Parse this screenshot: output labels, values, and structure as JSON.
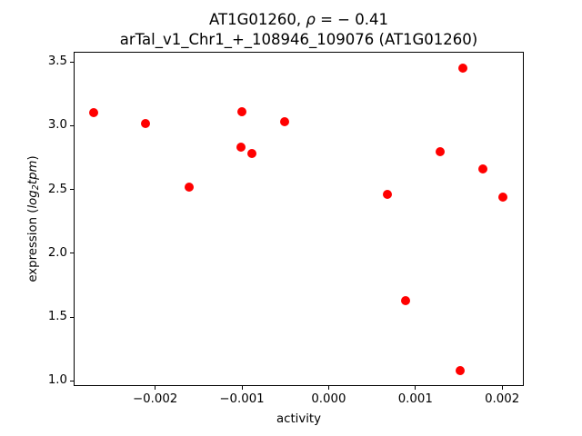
{
  "header": {
    "title_pre": "AT1G01260, ",
    "title_rho": "ρ",
    "title_post": " = − 0.41",
    "subtitle": "arTal_v1_Chr1_+_108946_109076 (AT1G01260)"
  },
  "axes": {
    "xlabel": "activity",
    "ylabel_pre": "expression (",
    "ylabel_log": "log",
    "ylabel_sub": "2",
    "ylabel_tpm": "tpm",
    "ylabel_post": ")"
  },
  "chart_data": {
    "type": "scatter",
    "title": "AT1G01260, ρ = − 0.41",
    "subtitle": "arTal_v1_Chr1_+_108946_109076 (AT1G01260)",
    "xlabel": "activity",
    "ylabel": "expression (log2 tpm)",
    "marker_color": "#ff0000",
    "marker_size_px": 10,
    "grid": false,
    "legend": null,
    "xlim": [
      -0.00294,
      0.00225
    ],
    "ylim": [
      0.96,
      3.58
    ],
    "x_ticks": [
      -0.002,
      -0.001,
      0.0,
      0.001,
      0.002
    ],
    "x_tick_labels": [
      "−0.002",
      "−0.001",
      "0.000",
      "0.001",
      "0.002"
    ],
    "y_ticks": [
      1.0,
      1.5,
      2.0,
      2.5,
      3.0,
      3.5
    ],
    "y_tick_labels": [
      "1.0",
      "1.5",
      "2.0",
      "2.5",
      "3.0",
      "3.5"
    ],
    "points": [
      [
        -0.00271,
        3.1
      ],
      [
        -0.00211,
        3.02
      ],
      [
        -0.00161,
        2.52
      ],
      [
        -0.00101,
        2.83
      ],
      [
        -0.001,
        3.11
      ],
      [
        -0.00089,
        2.78
      ],
      [
        -0.00051,
        3.03
      ],
      [
        0.00068,
        2.46
      ],
      [
        0.00089,
        1.63
      ],
      [
        0.00129,
        2.8
      ],
      [
        0.00152,
        1.08
      ],
      [
        0.00155,
        3.45
      ],
      [
        0.00178,
        2.66
      ],
      [
        0.00201,
        2.44
      ]
    ]
  }
}
